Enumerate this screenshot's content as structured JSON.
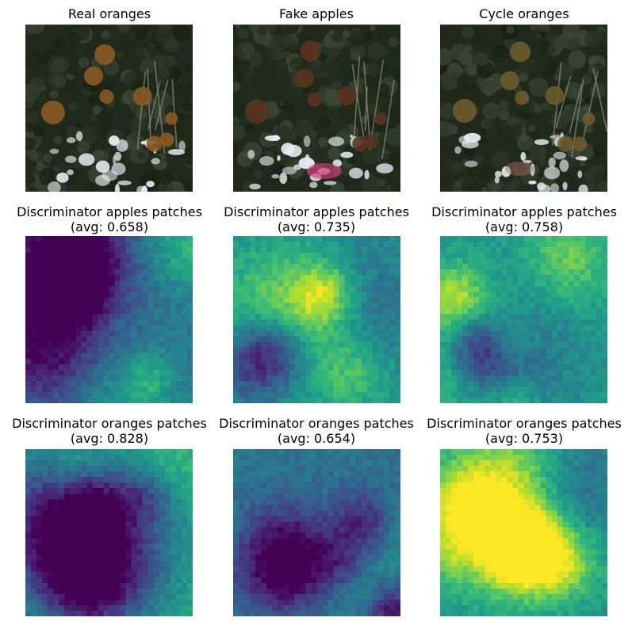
{
  "figure": {
    "rows": [
      {
        "kind": "photo",
        "panels": [
          {
            "title": "Real oranges",
            "variant": "real"
          },
          {
            "title": "Fake apples",
            "variant": "fake"
          },
          {
            "title": "Cycle oranges",
            "variant": "cycle"
          }
        ]
      },
      {
        "kind": "heatmap",
        "panels": [
          {
            "title": "Discriminator apples patches",
            "avg_text": "(avg: 0.658)",
            "avg": 0.658
          },
          {
            "title": "Discriminator apples patches",
            "avg_text": "(avg: 0.735)",
            "avg": 0.735
          },
          {
            "title": "Discriminator apples patches",
            "avg_text": "(avg: 0.758)",
            "avg": 0.758
          }
        ]
      },
      {
        "kind": "heatmap",
        "panels": [
          {
            "title": "Discriminator oranges patches",
            "avg_text": "(avg: 0.828)",
            "avg": 0.828
          },
          {
            "title": "Discriminator oranges patches",
            "avg_text": "(avg: 0.654)",
            "avg": 0.654
          },
          {
            "title": "Discriminator oranges patches",
            "avg_text": "(avg: 0.753)",
            "avg": 0.753
          }
        ]
      }
    ],
    "colormap": "viridis",
    "colors": {
      "background": "#ffffff",
      "foliage_dark": "#1f2a1c",
      "orange_fruit": "#8a5a22",
      "sky_highlight": "#e8ecf2"
    }
  }
}
